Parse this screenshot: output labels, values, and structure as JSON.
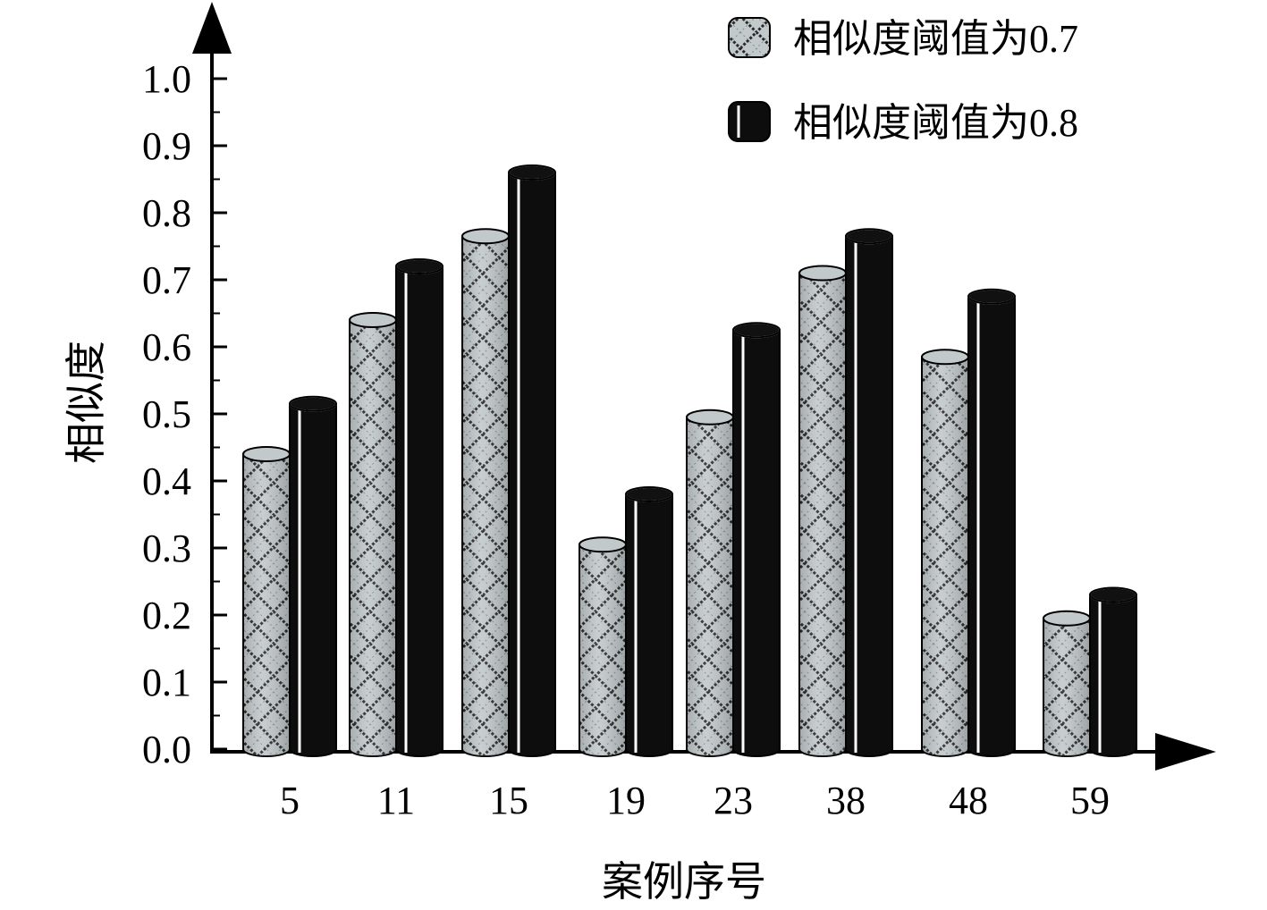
{
  "chart_data": {
    "type": "bar",
    "style": "3d-cylinder",
    "categories": [
      "5",
      "11",
      "15",
      "19",
      "23",
      "38",
      "48",
      "59"
    ],
    "series": [
      {
        "name": "相似度阈值为0.7",
        "values": [
          0.44,
          0.64,
          0.765,
          0.305,
          0.495,
          0.71,
          0.585,
          0.195
        ],
        "color": "#c2c9cb",
        "pattern": "crosshatch-checker"
      },
      {
        "name": "相似度阈值为0.8",
        "values": [
          0.515,
          0.72,
          0.86,
          0.38,
          0.625,
          0.765,
          0.675,
          0.23
        ],
        "color": "#0d0d0d",
        "pattern": "solid-with-highlight"
      }
    ],
    "xlabel": "案例序号",
    "ylabel": "相似度",
    "ylim": [
      0,
      1.0
    ],
    "yticks": [
      "0.0",
      "0.1",
      "0.2",
      "0.3",
      "0.4",
      "0.5",
      "0.6",
      "0.7",
      "0.8",
      "0.9",
      "1.0"
    ],
    "grid": false,
    "legend_position": "top-right"
  }
}
